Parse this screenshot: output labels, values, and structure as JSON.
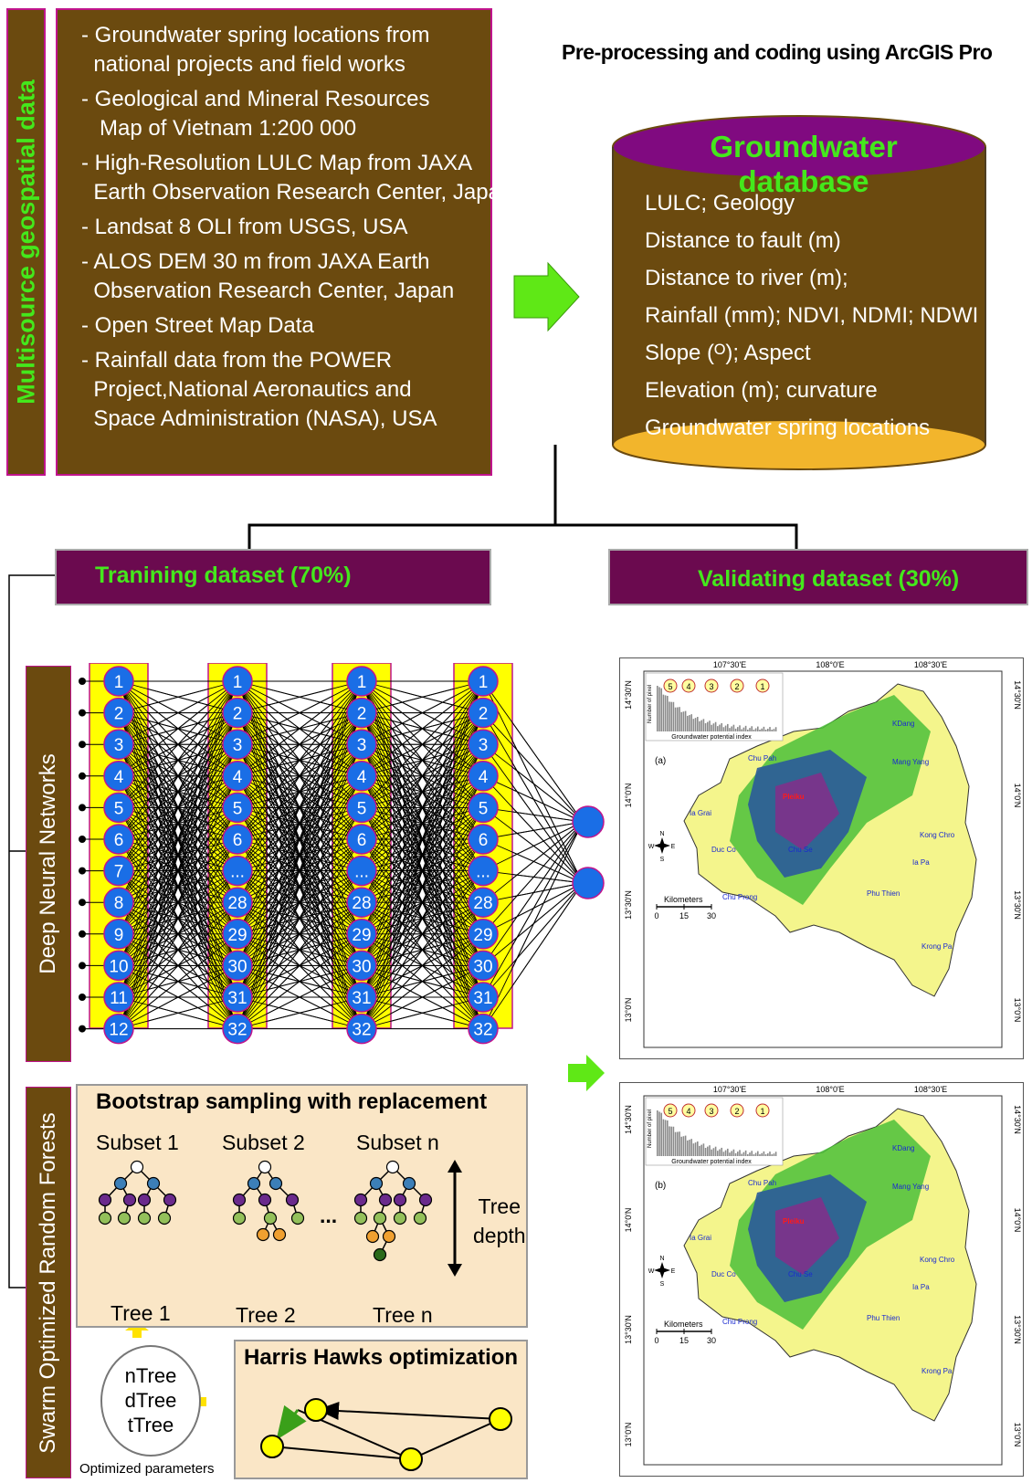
{
  "left_bar": {
    "label": "Multisource geospatial data"
  },
  "sources": [
    "- Groundwater spring locations from  national projects and field works",
    "- Geological and Mineral Resources   Map of Vietnam 1:200 000",
    "- High-Resolution LULC Map from JAXA  Earth Observation Research Center, Japan",
    "- Landsat 8 OLI from USGS, USA",
    "- ALOS DEM 30 m from JAXA Earth  Observation Research Center, Japan",
    "- Open Street Map Data",
    "- Rainfall data from the POWER  Project,National Aeronautics and  Space Administration (NASA), USA"
  ],
  "source_lines": [
    [
      "- Groundwater spring locations from",
      "  national projects and field works"
    ],
    [
      "- Geological and Mineral Resources",
      "   Map of Vietnam 1:200 000"
    ],
    [
      "- High-Resolution LULC Map from JAXA",
      "  Earth Observation Research Center, Japan"
    ],
    [
      "- Landsat 8 OLI from USGS, USA"
    ],
    [
      "- ALOS DEM 30 m from JAXA Earth",
      "  Observation Research Center, Japan"
    ],
    [
      "- Open Street Map Data"
    ],
    [
      "- Rainfall data from the POWER",
      "  Project,National Aeronautics and",
      "  Space Administration (NASA), USA"
    ]
  ],
  "preprocessing_title": "Pre-processing and coding using ArcGIS Pro",
  "database": {
    "title": "Groundwater database",
    "items": [
      "LULC; Geology",
      "Distance to fault (m)",
      "Distance to river (m);",
      "Rainfall (mm); NDVI, NDMI; NDWI",
      "Slope (ᴼ); Aspect",
      "Elevation (m); curvature",
      "Groundwater spring locations"
    ]
  },
  "training_label": "Tranining dataset (70%)",
  "validating_label": "Validating dataset (30%)",
  "dnn_label": "Deep Neural Networks",
  "rf_label": "Swarm Optimized Random Forests",
  "network": {
    "input_layer": [
      "1",
      "2",
      "3",
      "4",
      "5",
      "6",
      "7",
      "8",
      "9",
      "10",
      "11",
      "12"
    ],
    "hidden_layer": [
      "1",
      "2",
      "3",
      "4",
      "5",
      "6",
      "...",
      "28",
      "29",
      "30",
      "31",
      "32"
    ]
  },
  "bootstrap": {
    "title": "Bootstrap sampling with replacement",
    "subsets": [
      "Subset 1",
      "Subset 2",
      "Subset n"
    ],
    "trees": [
      "Tree 1",
      "Tree 2",
      "Tree n"
    ],
    "ellipsis": "...",
    "depth_label": [
      "Tree",
      "depth"
    ]
  },
  "hho_title": "Harris Hawks optimization",
  "params": [
    "nTree",
    "dTree",
    "tTree"
  ],
  "params_caption": "Optimized parameters",
  "maps": [
    {
      "panel": "(a)",
      "top_ticks": [
        "107°30'E",
        "108°0'E",
        "108°30'E"
      ],
      "side_ticks": [
        "14°30'N",
        "14°0'N",
        "13°30'N",
        "13°0'N"
      ],
      "places": [
        "KDang",
        "Chu Pah",
        "Mang Yang",
        "Pleiku",
        "Ia Grai",
        "Kong Chro",
        "Duc Co",
        "Chu Se",
        "Ia Pa",
        "Chu Prong",
        "Phu Thien",
        "Krong Pa"
      ],
      "scale_label": "Kilometers",
      "scale_ticks": [
        "0",
        "15",
        "30"
      ],
      "histogram": {
        "ylabel": "Number of pixel",
        "xlabel": "Groundwater potential index",
        "classes": [
          "5",
          "4",
          "3",
          "2",
          "1"
        ]
      }
    },
    {
      "panel": "(b)",
      "top_ticks": [
        "107°30'E",
        "108°0'E",
        "108°30'E"
      ],
      "side_ticks": [
        "14°30'N",
        "14°0'N",
        "13°30'N",
        "13°0'N"
      ],
      "places": [
        "KDang",
        "Chu Pah",
        "Mang Yang",
        "Pleiku",
        "Ia Grai",
        "Kong Chro",
        "Duc Co",
        "Chu Se",
        "Ia Pa",
        "Chu Prong",
        "Phu Thien",
        "Krong Pa"
      ],
      "scale_label": "Kilometers",
      "scale_ticks": [
        "0",
        "15",
        "30"
      ],
      "histogram": {
        "ylabel": "Number of pixel",
        "xlabel": "Groundwater potential index",
        "classes": [
          "5",
          "4",
          "3",
          "2",
          "1"
        ]
      }
    }
  ],
  "compass": [
    "N",
    "W",
    "E",
    "S"
  ],
  "colors": {
    "brown": "#6b4a0f",
    "maroon": "#6b0a4f",
    "green_text": "#44e81c",
    "node_blue": "#1a6ee6",
    "layer_yellow": "#ffff00"
  }
}
